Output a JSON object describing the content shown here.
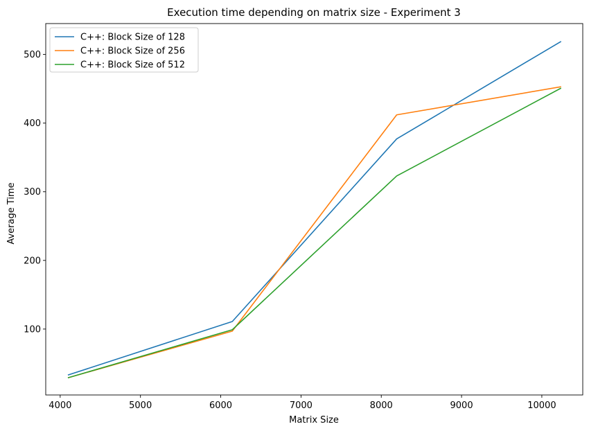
{
  "chart_data": {
    "type": "line",
    "title": "Execution time depending on matrix size - Experiment 3",
    "xlabel": "Matrix Size",
    "ylabel": "Average Time",
    "xlim": [
      3820,
      10510
    ],
    "ylim": [
      4,
      545
    ],
    "xticks": [
      4000,
      5000,
      6000,
      7000,
      8000,
      9000,
      10000
    ],
    "yticks": [
      100,
      200,
      300,
      400,
      500
    ],
    "legend": "top-left",
    "grid": false,
    "x": [
      4096,
      6144,
      8192,
      10240
    ],
    "series": [
      {
        "name": "C++: Block Size of 128",
        "color": "#1f77b4",
        "values": [
          33,
          111,
          377,
          519
        ]
      },
      {
        "name": "C++: Block Size of 256",
        "color": "#ff7f0e",
        "values": [
          29,
          97,
          412,
          453
        ]
      },
      {
        "name": "C++: Block Size of 512",
        "color": "#2ca02c",
        "values": [
          29,
          99,
          323,
          451
        ]
      }
    ]
  }
}
